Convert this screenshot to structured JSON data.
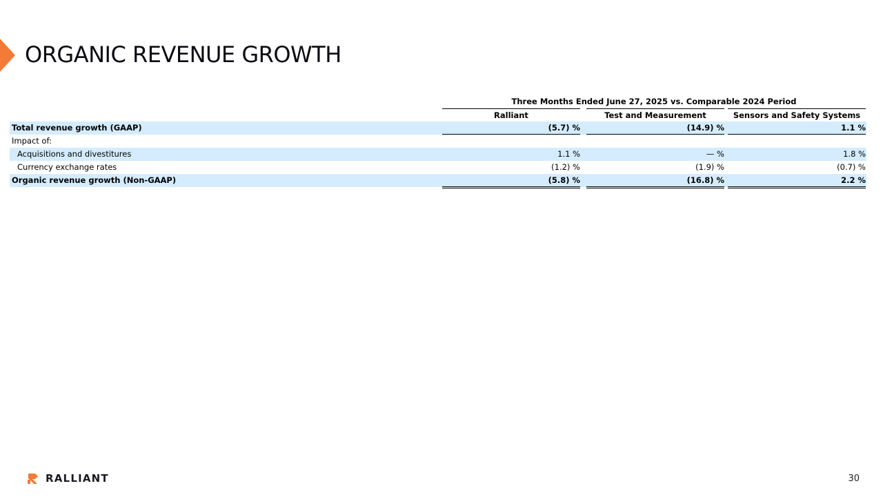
{
  "slide": {
    "title": "ORGANIC REVENUE GROWTH",
    "page_number": "30"
  },
  "brand": {
    "name": "RALLIANT",
    "accent_color": "#f47a38",
    "row_highlight_color": "#d4ecfd"
  },
  "table": {
    "period_header": "Three Months Ended June 27, 2025 vs. Comparable 2024 Period",
    "columns": [
      "Ralliant",
      "Test and Measurement",
      "Sensors and Safety Systems"
    ],
    "rows": [
      {
        "label": "Total revenue growth (GAAP)",
        "values": [
          "(5.7) %",
          "(14.9) %",
          "1.1  %"
        ]
      },
      {
        "label": "Impact of:",
        "values": [
          "",
          "",
          ""
        ]
      },
      {
        "label": "Acquisitions and divestitures",
        "values": [
          "1.1  %",
          "—  %",
          "1.8  %"
        ]
      },
      {
        "label": "Currency exchange rates",
        "values": [
          "(1.2) %",
          "(1.9) %",
          "(0.7) %"
        ]
      },
      {
        "label": "Organic revenue growth (Non-GAAP)",
        "values": [
          "(5.8) %",
          "(16.8) %",
          "2.2  %"
        ]
      }
    ]
  }
}
